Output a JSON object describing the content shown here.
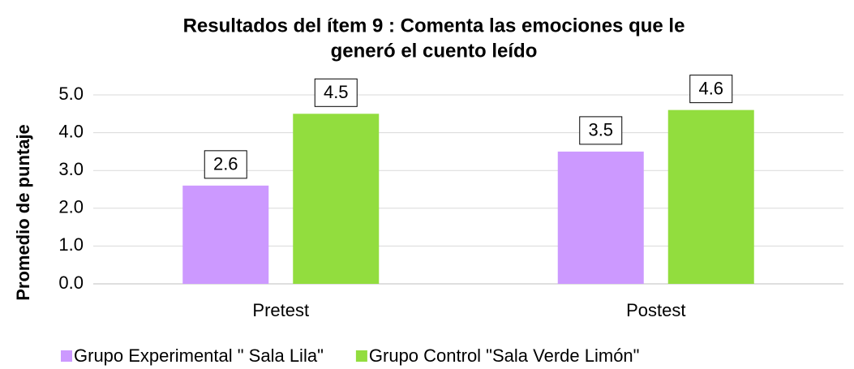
{
  "chart_data": {
    "type": "bar",
    "title": [
      "Resultados del ítem 9 : Comenta las emociones que le",
      "generó el cuento leído"
    ],
    "ylabel": "Promedio de puntaje",
    "categories": [
      "Pretest",
      "Postest"
    ],
    "series": [
      {
        "name": "Grupo Experimental \" Sala Lila\"",
        "color": "#cc99ff",
        "values": [
          2.6,
          3.5
        ]
      },
      {
        "name": "Grupo Control \"Sala Verde Limón\"",
        "color": "#92dd3e",
        "values": [
          4.5,
          4.6
        ]
      }
    ],
    "ylim": [
      0,
      5
    ],
    "yticks": [
      {
        "value": 0,
        "label": "0.0"
      },
      {
        "value": 1,
        "label": "1.0"
      },
      {
        "value": 2,
        "label": "2.0"
      },
      {
        "value": 3,
        "label": "3.0"
      },
      {
        "value": 4,
        "label": "4.0"
      },
      {
        "value": 5,
        "label": "5.0"
      }
    ],
    "grid": true,
    "legend": "bottom"
  }
}
